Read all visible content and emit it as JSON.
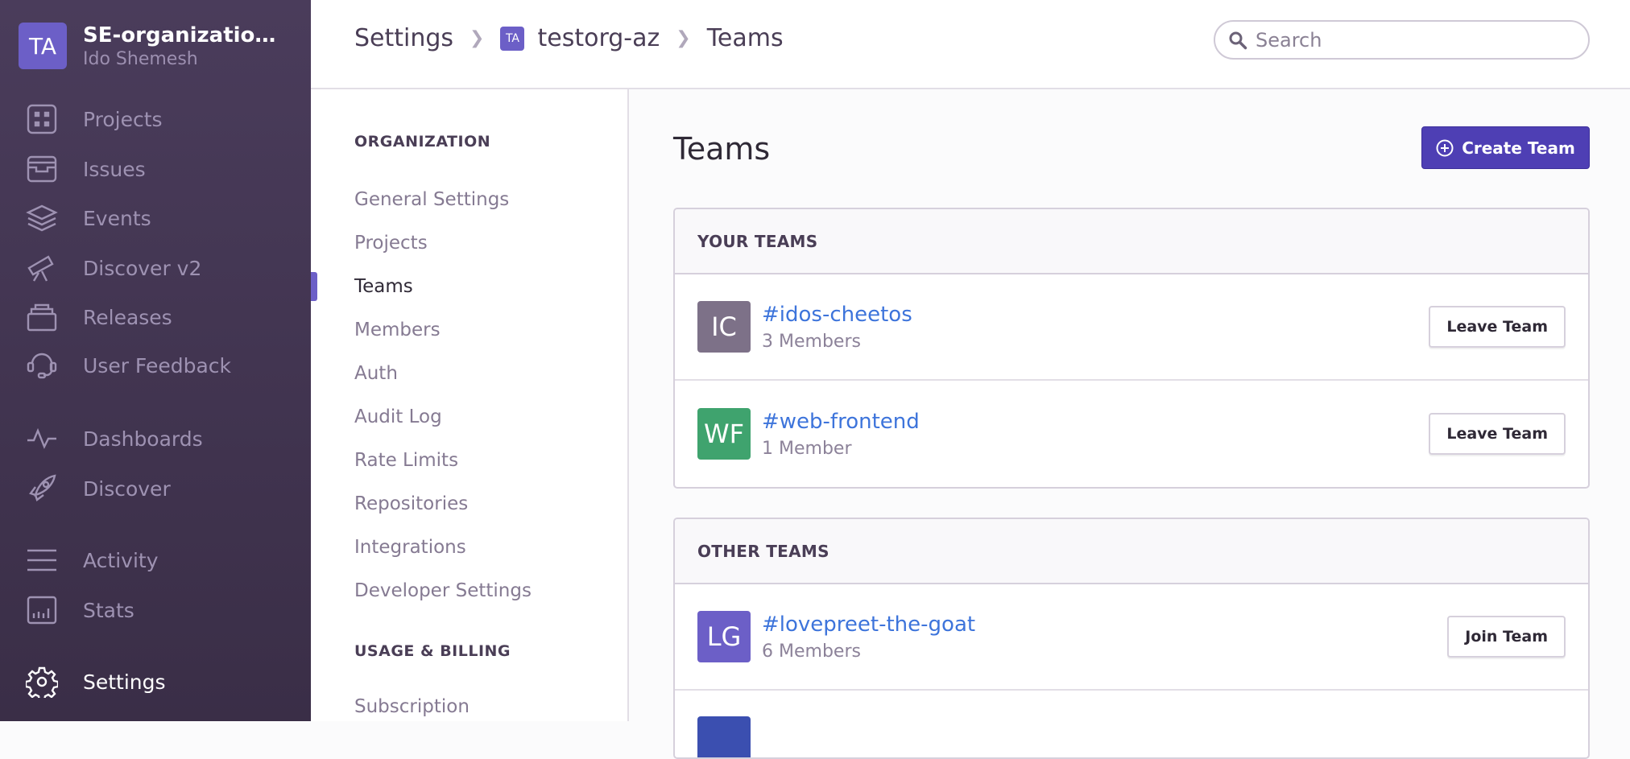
{
  "org": {
    "initials": "TA",
    "name": "SE-organization...",
    "user": "Ido Shemesh",
    "avatar_color": "#6c5fc7"
  },
  "sidebar": {
    "items": [
      {
        "label": "Projects",
        "icon": "projects-icon"
      },
      {
        "label": "Issues",
        "icon": "issues-icon"
      },
      {
        "label": "Events",
        "icon": "layers-icon"
      },
      {
        "label": "Discover v2",
        "icon": "telescope-icon"
      },
      {
        "label": "Releases",
        "icon": "releases-icon"
      },
      {
        "label": "User Feedback",
        "icon": "headset-icon"
      },
      {
        "label": "Dashboards",
        "icon": "pulse-icon"
      },
      {
        "label": "Discover",
        "icon": "rocket-icon"
      },
      {
        "label": "Activity",
        "icon": "list-icon"
      },
      {
        "label": "Stats",
        "icon": "bar-chart-icon"
      },
      {
        "label": "Settings",
        "icon": "gear-icon",
        "active": true
      }
    ]
  },
  "breadcrumb": {
    "items": [
      "Settings",
      "testorg-az",
      "Teams"
    ],
    "org_initials": "TA"
  },
  "search": {
    "placeholder": "Search",
    "value": ""
  },
  "settings_nav": {
    "sections": [
      {
        "title": "ORGANIZATION"
      },
      {
        "title": "USAGE & BILLING"
      }
    ],
    "items": [
      "General Settings",
      "Projects",
      "Teams",
      "Members",
      "Auth",
      "Audit Log",
      "Rate Limits",
      "Repositories",
      "Integrations",
      "Developer Settings"
    ],
    "billing_items": [
      "Subscription"
    ],
    "active": "Teams"
  },
  "main": {
    "title": "Teams",
    "create_label": "Create Team",
    "your_teams": {
      "title": "YOUR TEAMS",
      "teams": [
        {
          "initials": "IC",
          "name": "#idos-cheetos",
          "members": "3 Members",
          "action": "Leave Team",
          "color": "#7d7188"
        },
        {
          "initials": "WF",
          "name": "#web-frontend",
          "members": "1 Member",
          "action": "Leave Team",
          "color": "#3fa36e"
        }
      ]
    },
    "other_teams": {
      "title": "OTHER TEAMS",
      "teams": [
        {
          "initials": "LG",
          "name": "#lovepreet-the-goat",
          "members": "6 Members",
          "action": "Join Team",
          "color": "#6c5fc7"
        }
      ]
    }
  },
  "colors": {
    "accent": "#6c5fc7",
    "primary_button": "#4e3fb4",
    "link": "#3d74db"
  }
}
